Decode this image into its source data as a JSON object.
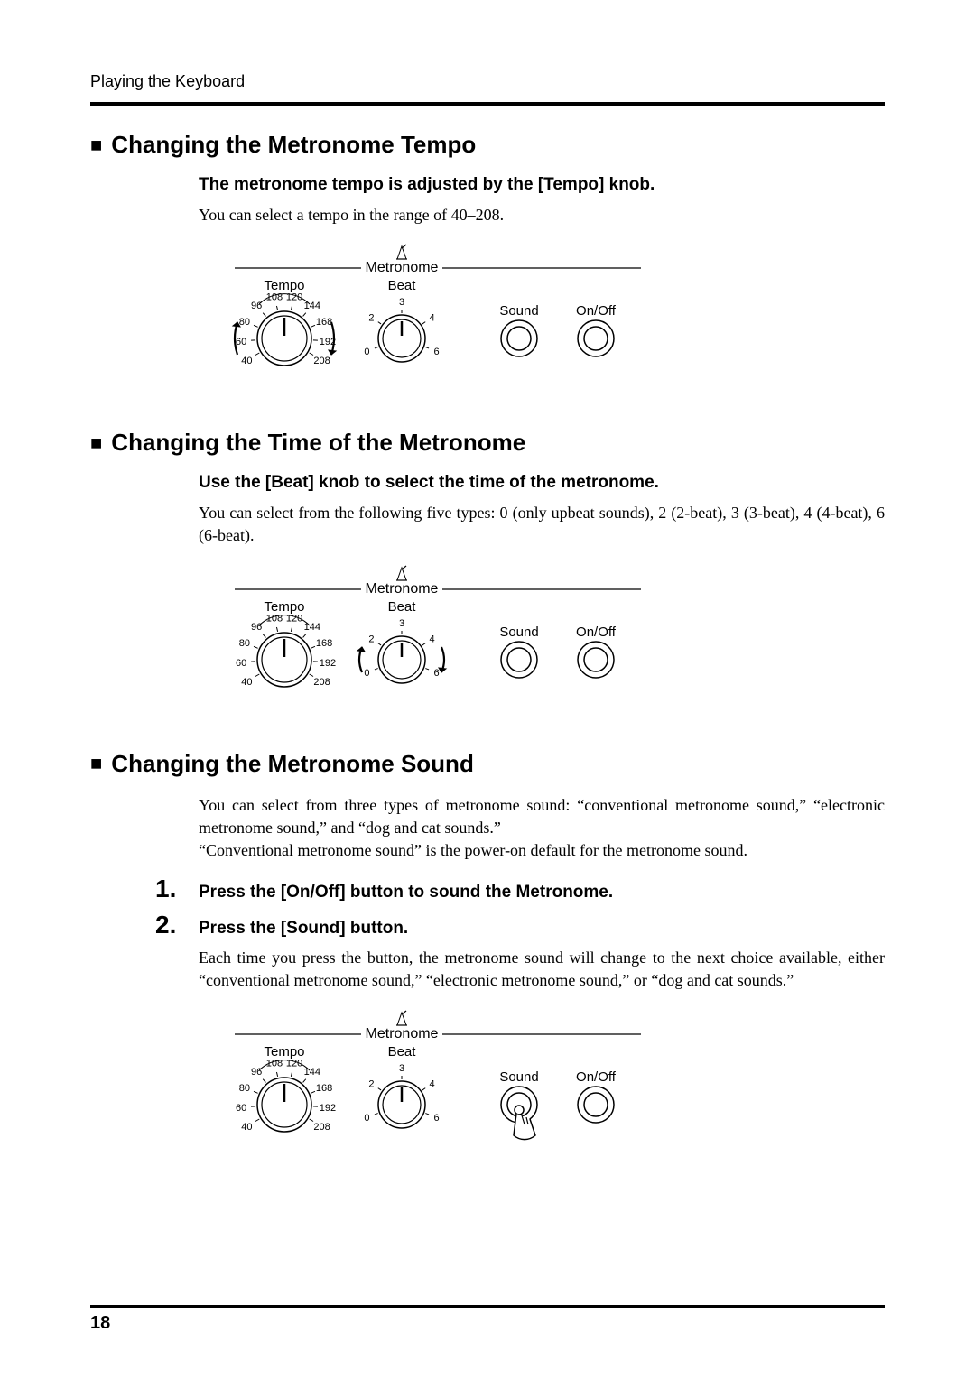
{
  "header": "Playing the Keyboard",
  "page_number": "18",
  "section1": {
    "title": "Changing the Metronome Tempo",
    "sub": "The metronome tempo is adjusted by the [Tempo] knob.",
    "body": "You can select a tempo in the range of 40–208."
  },
  "section2": {
    "title": "Changing the Time of the Metronome",
    "sub": "Use the [Beat] knob to select the time of the metronome.",
    "body": "You can select from the following five types: 0 (only upbeat sounds), 2 (2-beat), 3 (3-beat), 4 (4-beat), 6 (6-beat)."
  },
  "section3": {
    "title": "Changing the Metronome Sound",
    "intro": "You can select from three types of metronome sound: “conventional metronome sound,” “electronic metronome sound,” and “dog and cat sounds.”\n“Conventional metronome sound” is the power-on default for the metronome sound.",
    "step1_num": "1.",
    "step1_text": "Press the [On/Off] button to sound the Metronome.",
    "step2_num": "2.",
    "step2_text": "Press the [Sound] button.",
    "step_body": "Each time you press the button, the metronome sound will change to the next choice available, either “conventional metronome sound,” “electronic metronome sound,” or “dog and cat sounds.”"
  },
  "diagram": {
    "panel_label": "Metronome",
    "tempo_label": "Tempo",
    "beat_label": "Beat",
    "sound_label": "Sound",
    "onoff_label": "On/Off",
    "tempo_ticks": [
      "40",
      "60",
      "80",
      "96",
      "108",
      "120",
      "144",
      "168",
      "192",
      "208"
    ],
    "beat_ticks": [
      "0",
      "2",
      "3",
      "4",
      "6"
    ]
  }
}
